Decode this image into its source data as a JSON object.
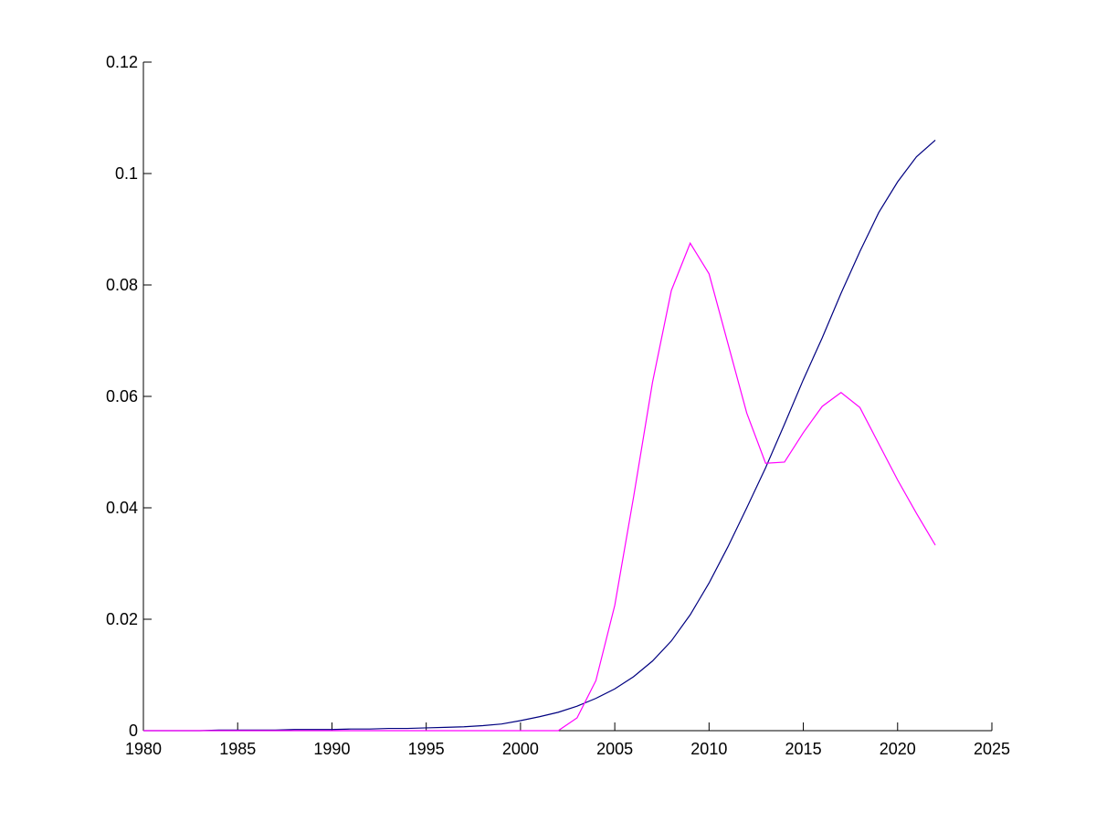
{
  "chart_data": {
    "type": "line",
    "x": [
      1980,
      1981,
      1982,
      1983,
      1984,
      1985,
      1986,
      1987,
      1988,
      1989,
      1990,
      1991,
      1992,
      1993,
      1994,
      1995,
      1996,
      1997,
      1998,
      1999,
      2000,
      2001,
      2002,
      2003,
      2004,
      2005,
      2006,
      2007,
      2008,
      2009,
      2010,
      2011,
      2012,
      2013,
      2014,
      2015,
      2016,
      2017,
      2018,
      2019,
      2020,
      2021,
      2022
    ],
    "series": [
      {
        "color": "#000080",
        "values": [
          0,
          0,
          0,
          0,
          0.0001,
          0.0001,
          0.0001,
          0.0001,
          0.0002,
          0.0002,
          0.0002,
          0.0003,
          0.0003,
          0.0004,
          0.0004,
          0.0005,
          0.0006,
          0.0007,
          0.0009,
          0.0012,
          0.0018,
          0.0025,
          0.0033,
          0.0044,
          0.0058,
          0.0075,
          0.0097,
          0.0125,
          0.0161,
          0.0208,
          0.0265,
          0.033,
          0.04,
          0.0472,
          0.055,
          0.063,
          0.0705,
          0.0785,
          0.086,
          0.093,
          0.0985,
          0.103,
          0.106
        ]
      },
      {
        "color": "#ff00ff",
        "values": [
          0,
          0,
          0,
          0,
          0,
          0,
          0,
          0,
          0,
          0,
          0,
          0,
          0,
          0,
          0,
          0,
          0,
          0,
          0,
          0,
          0,
          0,
          0,
          0.0023,
          0.009,
          0.0225,
          0.042,
          0.0625,
          0.079,
          0.0875,
          0.082,
          0.0695,
          0.057,
          0.048,
          0.0482,
          0.0535,
          0.0582,
          0.0607,
          0.058,
          0.0515,
          0.045,
          0.039,
          0.0333
        ]
      }
    ],
    "xlim": [
      1980,
      2025
    ],
    "xticks": [
      1980,
      1985,
      1990,
      1995,
      2000,
      2005,
      2010,
      2015,
      2020,
      2025
    ],
    "ylim": [
      0,
      0.12
    ],
    "yticks": [
      0,
      0.02,
      0.04,
      0.06,
      0.08,
      0.1,
      0.12
    ],
    "grid": false
  }
}
